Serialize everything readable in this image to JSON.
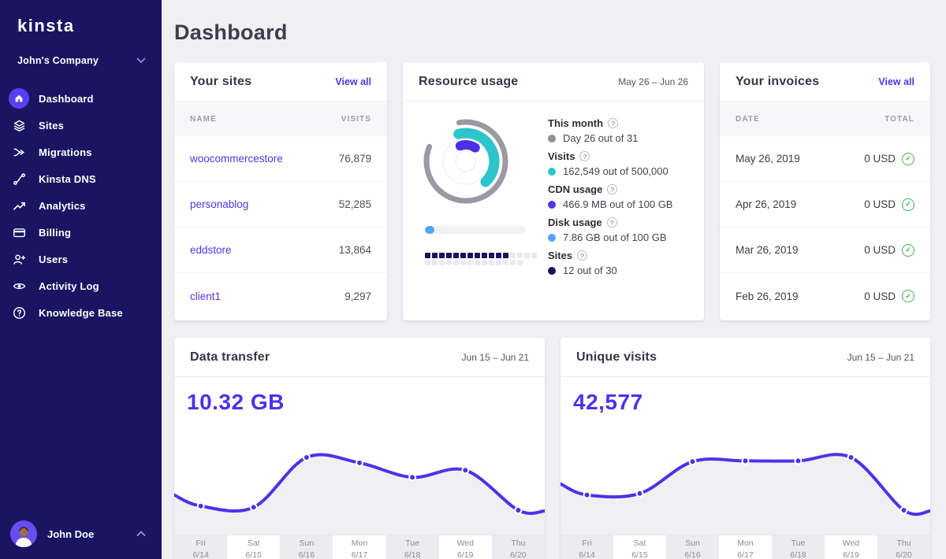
{
  "icons": {
    "help": "?",
    "check": "✓"
  },
  "sidebar": {
    "logo": "kinsta",
    "company": "John's Company",
    "items": [
      {
        "label": "Dashboard",
        "active": true
      },
      {
        "label": "Sites"
      },
      {
        "label": "Migrations"
      },
      {
        "label": "Kinsta DNS"
      },
      {
        "label": "Analytics"
      },
      {
        "label": "Billing"
      },
      {
        "label": "Users"
      },
      {
        "label": "Activity Log"
      },
      {
        "label": "Knowledge Base"
      }
    ],
    "user": "John Doe"
  },
  "page_title": "Dashboard",
  "sites_card": {
    "title": "Your sites",
    "view_all": "View all",
    "col_name": "NAME",
    "col_visits": "VISITS",
    "rows": [
      {
        "name": "woocommercestore",
        "visits": "76,879"
      },
      {
        "name": "personablog",
        "visits": "52,285"
      },
      {
        "name": "eddstore",
        "visits": "13,864"
      },
      {
        "name": "client1",
        "visits": "9,297"
      }
    ]
  },
  "resource_card": {
    "title": "Resource usage",
    "date_range": "May 26 – Jun 26",
    "metrics": [
      {
        "label": "This month",
        "value": "Day 26 out of 31",
        "color": "#8f8f98"
      },
      {
        "label": "Visits",
        "value": "162,549 out of 500,000",
        "color": "#2bc5cb"
      },
      {
        "label": "CDN usage",
        "value": "466.9 MB out of 100 GB",
        "color": "#5134ec"
      },
      {
        "label": "Disk usage",
        "value": "7.86 GB out of 100 GB",
        "color": "#55a4f2"
      },
      {
        "label": "Sites",
        "value": "12 out of 30",
        "color": "#15155e"
      }
    ],
    "donut_rings": [
      {
        "color": "#9a9aa2",
        "pct": 0.839,
        "start": -10,
        "r": 50,
        "w": 7
      },
      {
        "color": "#2bc5cb",
        "pct": 0.42,
        "start": -15,
        "r": 36,
        "w": 13
      },
      {
        "color": "#4b2fe8",
        "pct": 0.15,
        "start": -20,
        "r": 21,
        "w": 12
      }
    ],
    "disk_usage_pct": 9,
    "sites_squares": {
      "filled": 12,
      "total": 30
    }
  },
  "invoices_card": {
    "title": "Your invoices",
    "view_all": "View all",
    "col_date": "DATE",
    "col_total": "TOTAL",
    "rows": [
      {
        "date": "May 26, 2019",
        "total": "0 USD"
      },
      {
        "date": "Apr 26, 2019",
        "total": "0 USD"
      },
      {
        "date": "Mar 26, 2019",
        "total": "0 USD"
      },
      {
        "date": "Feb 26, 2019",
        "total": "0 USD"
      }
    ]
  },
  "chart_data": [
    {
      "type": "line",
      "title": "Data transfer",
      "date_range": "Jun 15 – Jun 21",
      "total": "10.32 GB",
      "categories": [
        "Fri 6/14",
        "Sat 6/15",
        "Sun 6/16",
        "Mon 6/17",
        "Tue 6/18",
        "Wed 6/19",
        "Thu 6/20"
      ],
      "axis": [
        {
          "day": "Fri",
          "date": "6/14"
        },
        {
          "day": "Sat",
          "date": "6/15"
        },
        {
          "day": "Sun",
          "date": "6/16"
        },
        {
          "day": "Mon",
          "date": "6/17"
        },
        {
          "day": "Tue",
          "date": "6/18"
        },
        {
          "day": "Wed",
          "date": "6/19"
        },
        {
          "day": "Thu",
          "date": "6/20"
        }
      ],
      "values": [
        0.8,
        0.76,
        2.32,
        2.15,
        1.7,
        1.92,
        0.67
      ],
      "values_unit": "GB",
      "estimated": true,
      "grid": false,
      "line_color": "#4c33e8",
      "area_color": "#f0f0f3"
    },
    {
      "type": "line",
      "title": "Unique visits",
      "date_range": "Jun 15 – Jun 21",
      "total": "42,577",
      "categories": [
        "Fri 6/14",
        "Sat 6/15",
        "Sun 6/16",
        "Mon 6/17",
        "Tue 6/18",
        "Wed 6/19",
        "Thu 6/20"
      ],
      "axis": [
        {
          "day": "Fri",
          "date": "6/14"
        },
        {
          "day": "Sat",
          "date": "6/15"
        },
        {
          "day": "Sun",
          "date": "6/16"
        },
        {
          "day": "Mon",
          "date": "6/17"
        },
        {
          "day": "Tue",
          "date": "6/18"
        },
        {
          "day": "Wed",
          "date": "6/19"
        },
        {
          "day": "Thu",
          "date": "6/20"
        }
      ],
      "values": [
        4900,
        5000,
        7300,
        7350,
        7350,
        7600,
        3800
      ],
      "values_unit": "visits",
      "estimated": true,
      "grid": false,
      "line_color": "#4c33e8",
      "area_color": "#f0f0f3"
    }
  ]
}
